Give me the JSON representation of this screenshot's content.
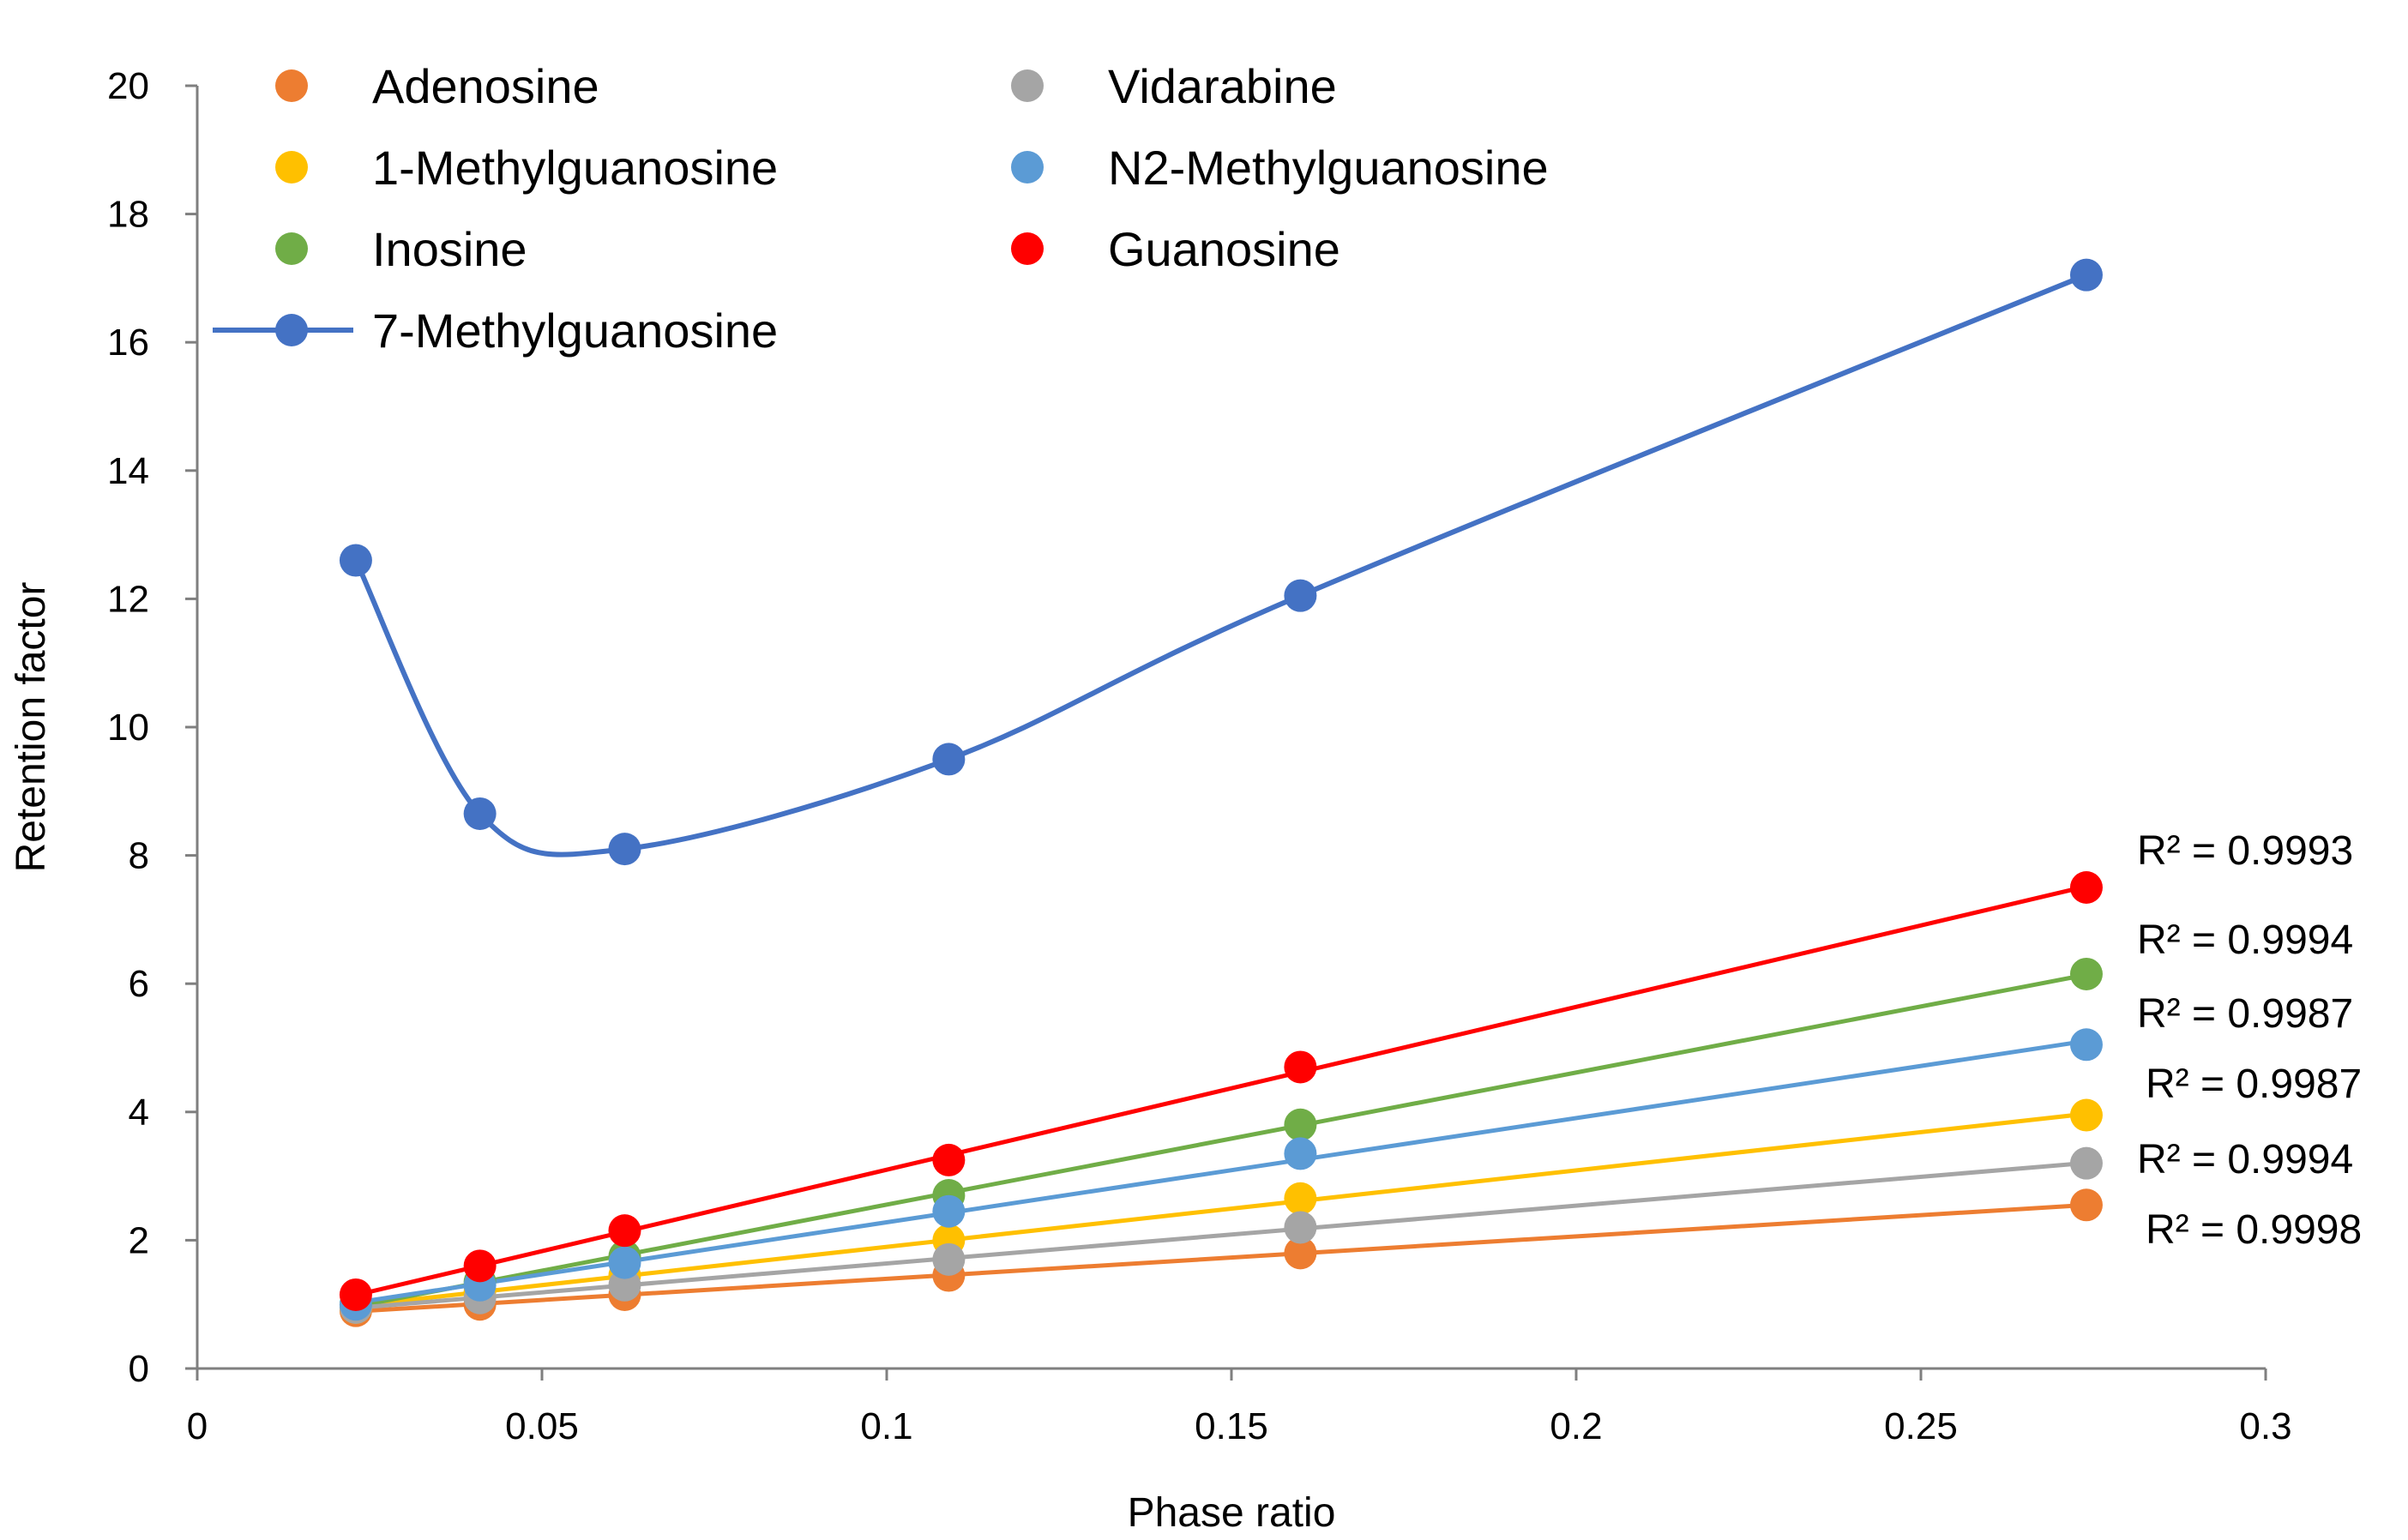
{
  "chart_data": {
    "type": "scatter",
    "title": "",
    "xlabel": "Phase ratio",
    "ylabel": "Retention factor",
    "xlim": [
      0,
      0.3
    ],
    "ylim": [
      0,
      20
    ],
    "x_ticks": [
      "0",
      "0.05",
      "0.1",
      "0.15",
      "0.2",
      "0.25",
      "0.3"
    ],
    "y_ticks": [
      "0",
      "2",
      "4",
      "6",
      "8",
      "10",
      "12",
      "14",
      "16",
      "18",
      "20"
    ],
    "grid": false,
    "legend_position": "top-left",
    "x": [
      0.023,
      0.041,
      0.062,
      0.109,
      0.16,
      0.274
    ],
    "series": [
      {
        "name": "Adenosine",
        "color": "#ED7D31",
        "values": [
          0.9,
          1.0,
          1.15,
          1.45,
          1.8,
          2.55
        ],
        "fit": "linear",
        "r2": "R² = 0.9998"
      },
      {
        "name": "1-Methylguanosine",
        "color": "#FFC000",
        "values": [
          0.95,
          1.2,
          1.45,
          2.0,
          2.65,
          3.95
        ],
        "fit": "linear",
        "r2": "R² = 0.9987"
      },
      {
        "name": "Inosine",
        "color": "#70AD47",
        "values": [
          1.0,
          1.35,
          1.75,
          2.7,
          3.8,
          6.15
        ],
        "fit": "linear",
        "r2": "R² = 0.9994"
      },
      {
        "name": "7-Methylguanosine",
        "color": "#4472C4",
        "values": [
          12.6,
          8.65,
          8.1,
          9.5,
          12.05,
          17.05
        ],
        "fit": "smooth"
      },
      {
        "name": "Vidarabine",
        "color": "#A5A5A5",
        "values": [
          0.95,
          1.1,
          1.3,
          1.7,
          2.2,
          3.2
        ],
        "fit": "linear",
        "r2": "R² = 0.9994"
      },
      {
        "name": "N2-Methylguanosine",
        "color": "#5B9BD5",
        "values": [
          1.0,
          1.3,
          1.65,
          2.45,
          3.35,
          5.05
        ],
        "fit": "linear",
        "r2": "R² = 0.9987"
      },
      {
        "name": "Guanosine",
        "color": "#FF0000",
        "values": [
          1.15,
          1.6,
          2.15,
          3.25,
          4.7,
          7.5
        ],
        "fit": "linear",
        "r2": "R² = 0.9993"
      }
    ]
  }
}
